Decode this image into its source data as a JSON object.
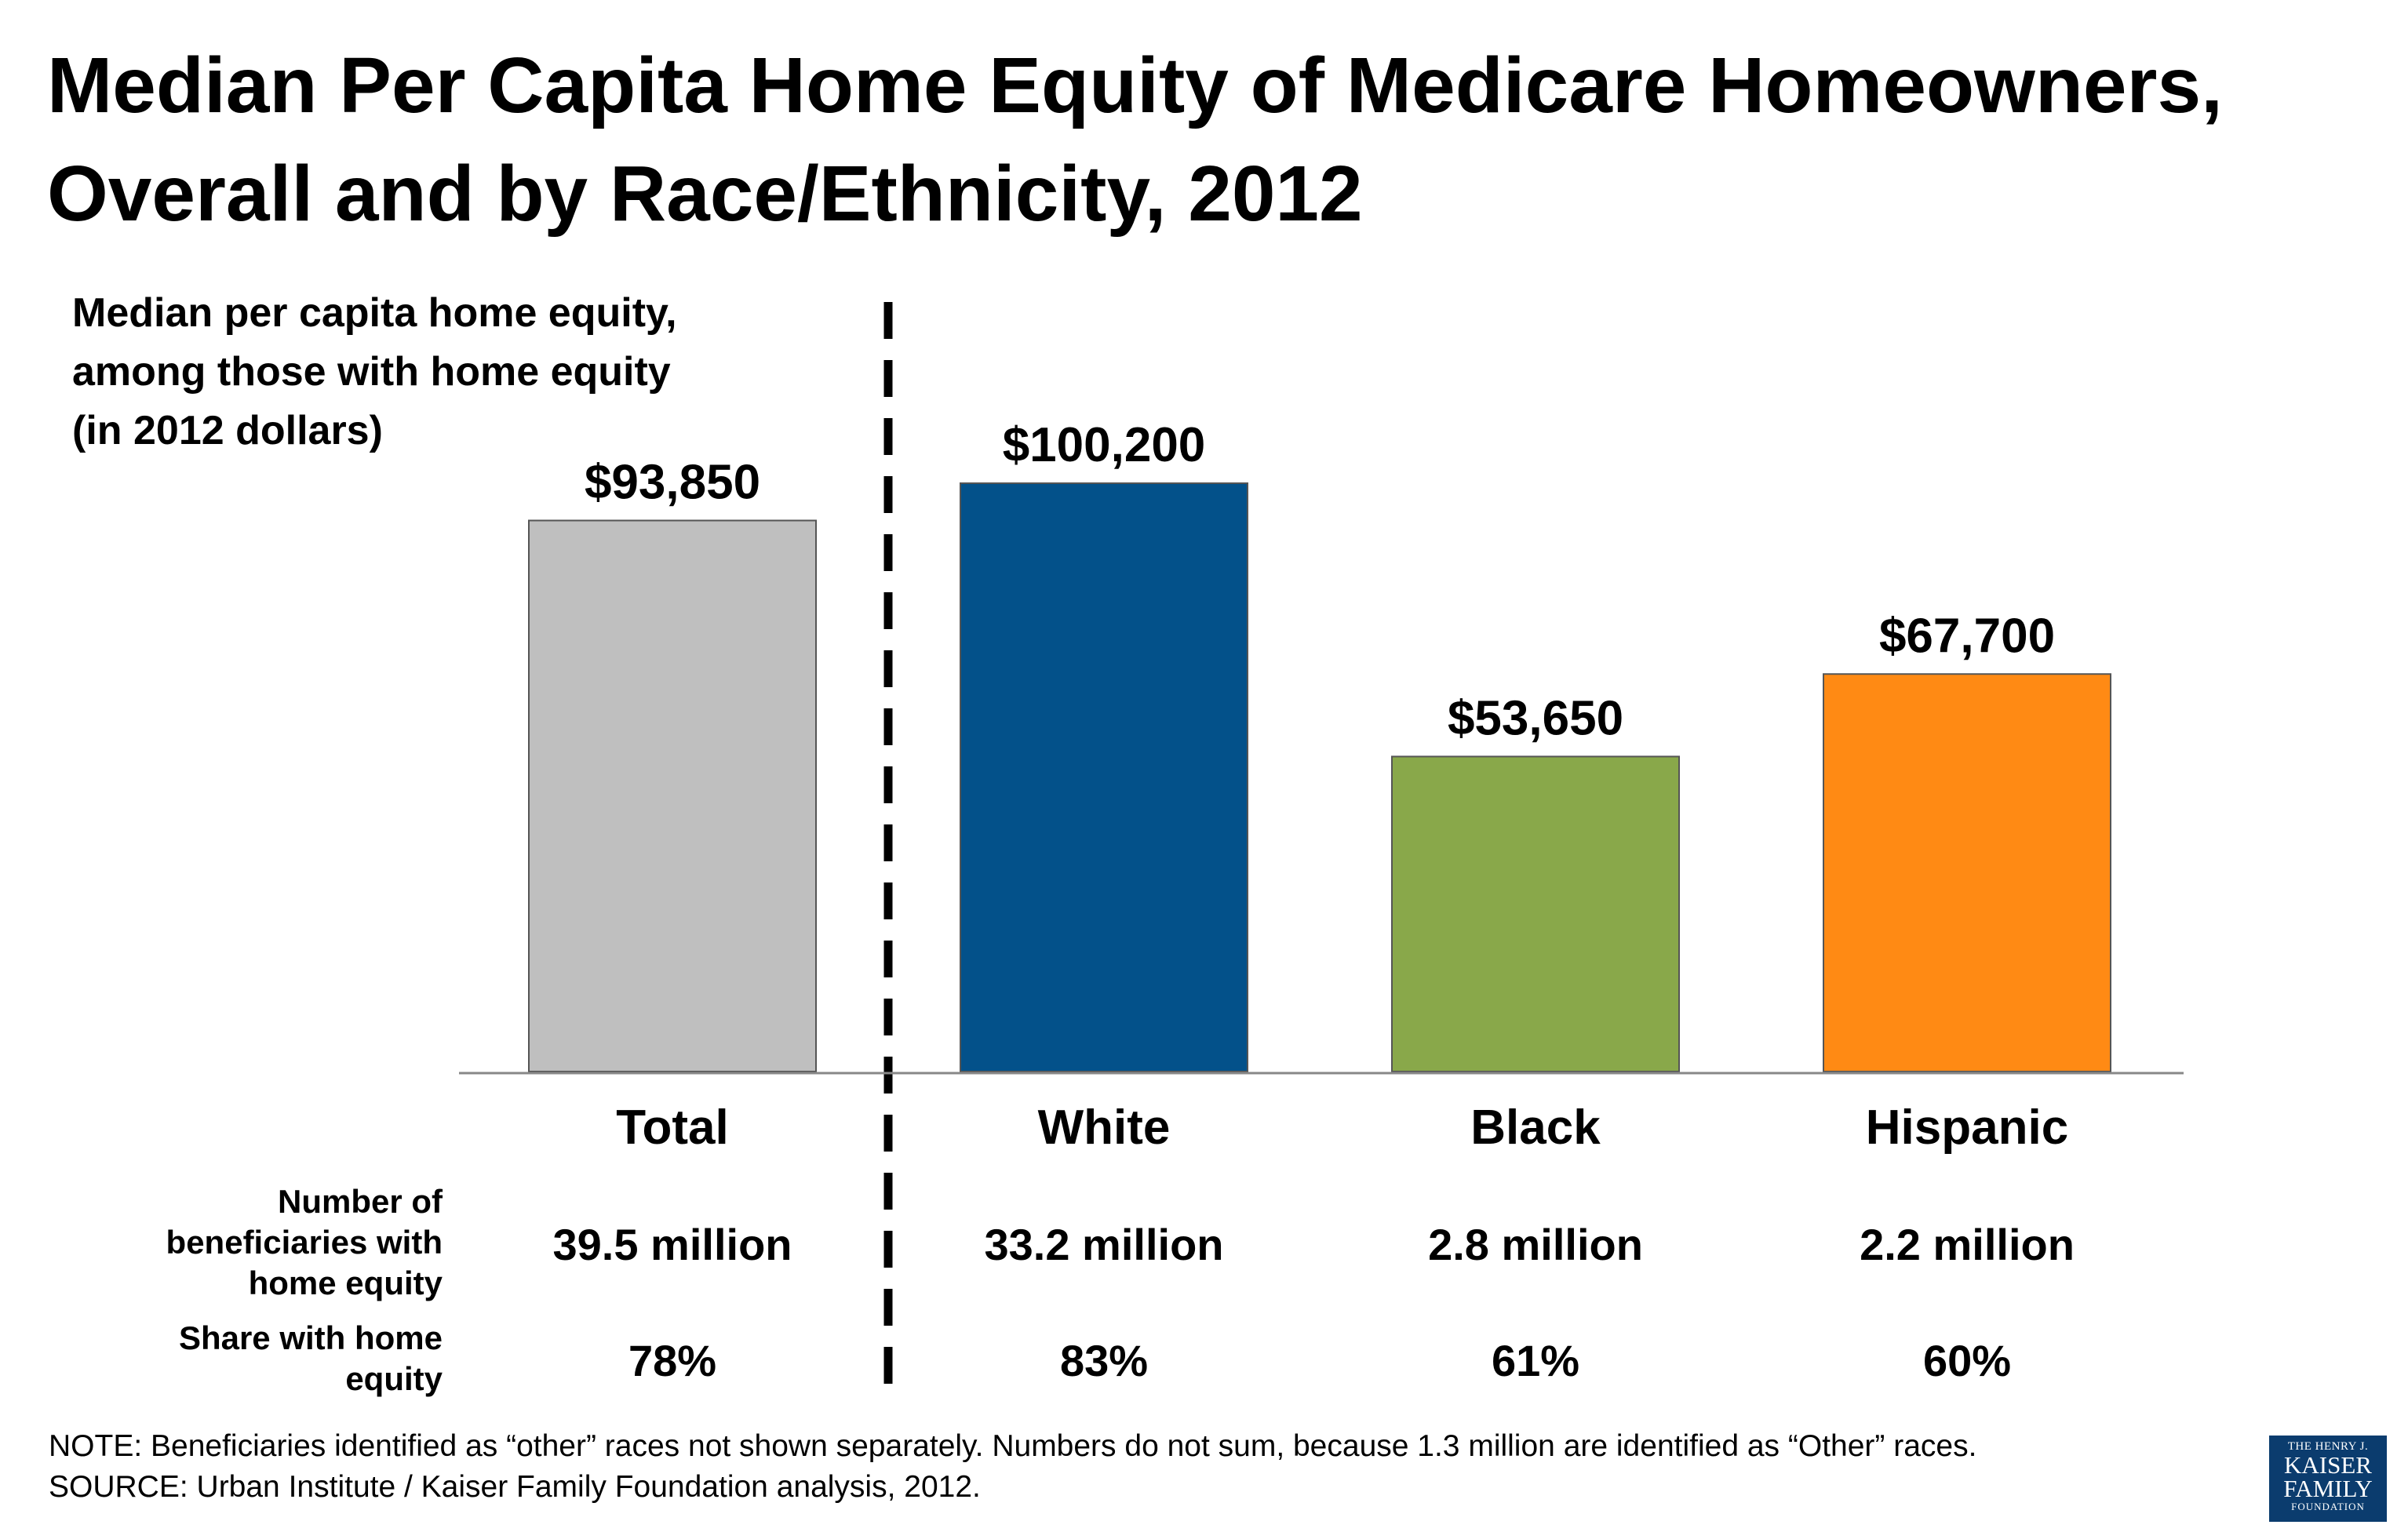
{
  "title_lines": [
    "Median Per Capita Home Equity of Medicare Homeowners,",
    "Overall and by Race/Ethnicity, 2012"
  ],
  "ylabel_lines": [
    "Median per capita home equity,",
    "among those with home equity",
    "(in 2012 dollars)"
  ],
  "chart_data": {
    "type": "bar",
    "title": "Median Per Capita Home Equity of Medicare Homeowners, Overall and by Race/Ethnicity, 2012",
    "ylabel": "Median per capita home equity, among those with home equity (in 2012 dollars)",
    "xlabel": "",
    "categories": [
      "Total",
      "White",
      "Black",
      "Hispanic"
    ],
    "values": [
      93850,
      100200,
      53650,
      67700
    ],
    "value_labels": [
      "$93,850",
      "$100,200",
      "$53,650",
      "$67,700"
    ],
    "colors": [
      "#bfbfbf",
      "#03518a",
      "#89a84a",
      "#ff8a14"
    ],
    "ylim": [
      0,
      100200
    ],
    "grid": false,
    "legend": "none",
    "divider": "dashed line between Total and White"
  },
  "table": {
    "row1_label_lines": [
      "Number of",
      "beneficiaries with",
      "home equity"
    ],
    "row1_values": [
      "39.5 million",
      "33.2 million",
      "2.8 million",
      "2.2 million"
    ],
    "row2_label_lines": [
      "Share with home",
      "equity"
    ],
    "row2_values": [
      "78%",
      "83%",
      "61%",
      "60%"
    ]
  },
  "footer": {
    "note": "NOTE: Beneficiaries identified as “other” races not shown separately.  Numbers do not sum, because 1.3 million are identified as “Other” races.",
    "source": "SOURCE: Urban Institute / Kaiser Family Foundation analysis, 2012."
  },
  "logo": {
    "line1": "THE HENRY J.",
    "line2": "KAISER",
    "line3": "FAMILY",
    "line4": "FOUNDATION",
    "color": "#0b3c6e"
  }
}
